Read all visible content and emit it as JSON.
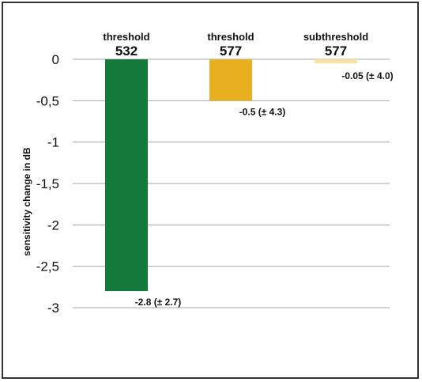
{
  "chart_data": {
    "type": "bar",
    "ylabel": "sensitivity change in dB",
    "ylim": [
      -3,
      0
    ],
    "y_ticks": [
      "0",
      "-0,5",
      "-1",
      "-1,5",
      "-2",
      "-2,5",
      "-3"
    ],
    "y_tick_values": [
      0,
      -0.5,
      -1,
      -1.5,
      -2,
      -2.5,
      -3
    ],
    "grid": true,
    "bars": [
      {
        "label_line1": "threshold",
        "label_line2": "532",
        "value": -2.8,
        "data_label": "-2.8 (± 2.7)",
        "color": "#137a3b"
      },
      {
        "label_line1": "threshold",
        "label_line2": "577",
        "value": -0.5,
        "data_label": "-0.5 (± 4.3)",
        "color": "#e8b020"
      },
      {
        "label_line1": "subthreshold",
        "label_line2": "577",
        "value": -0.05,
        "data_label": "-0.05 (± 4.0)",
        "color": "#f7e3a0"
      }
    ]
  }
}
